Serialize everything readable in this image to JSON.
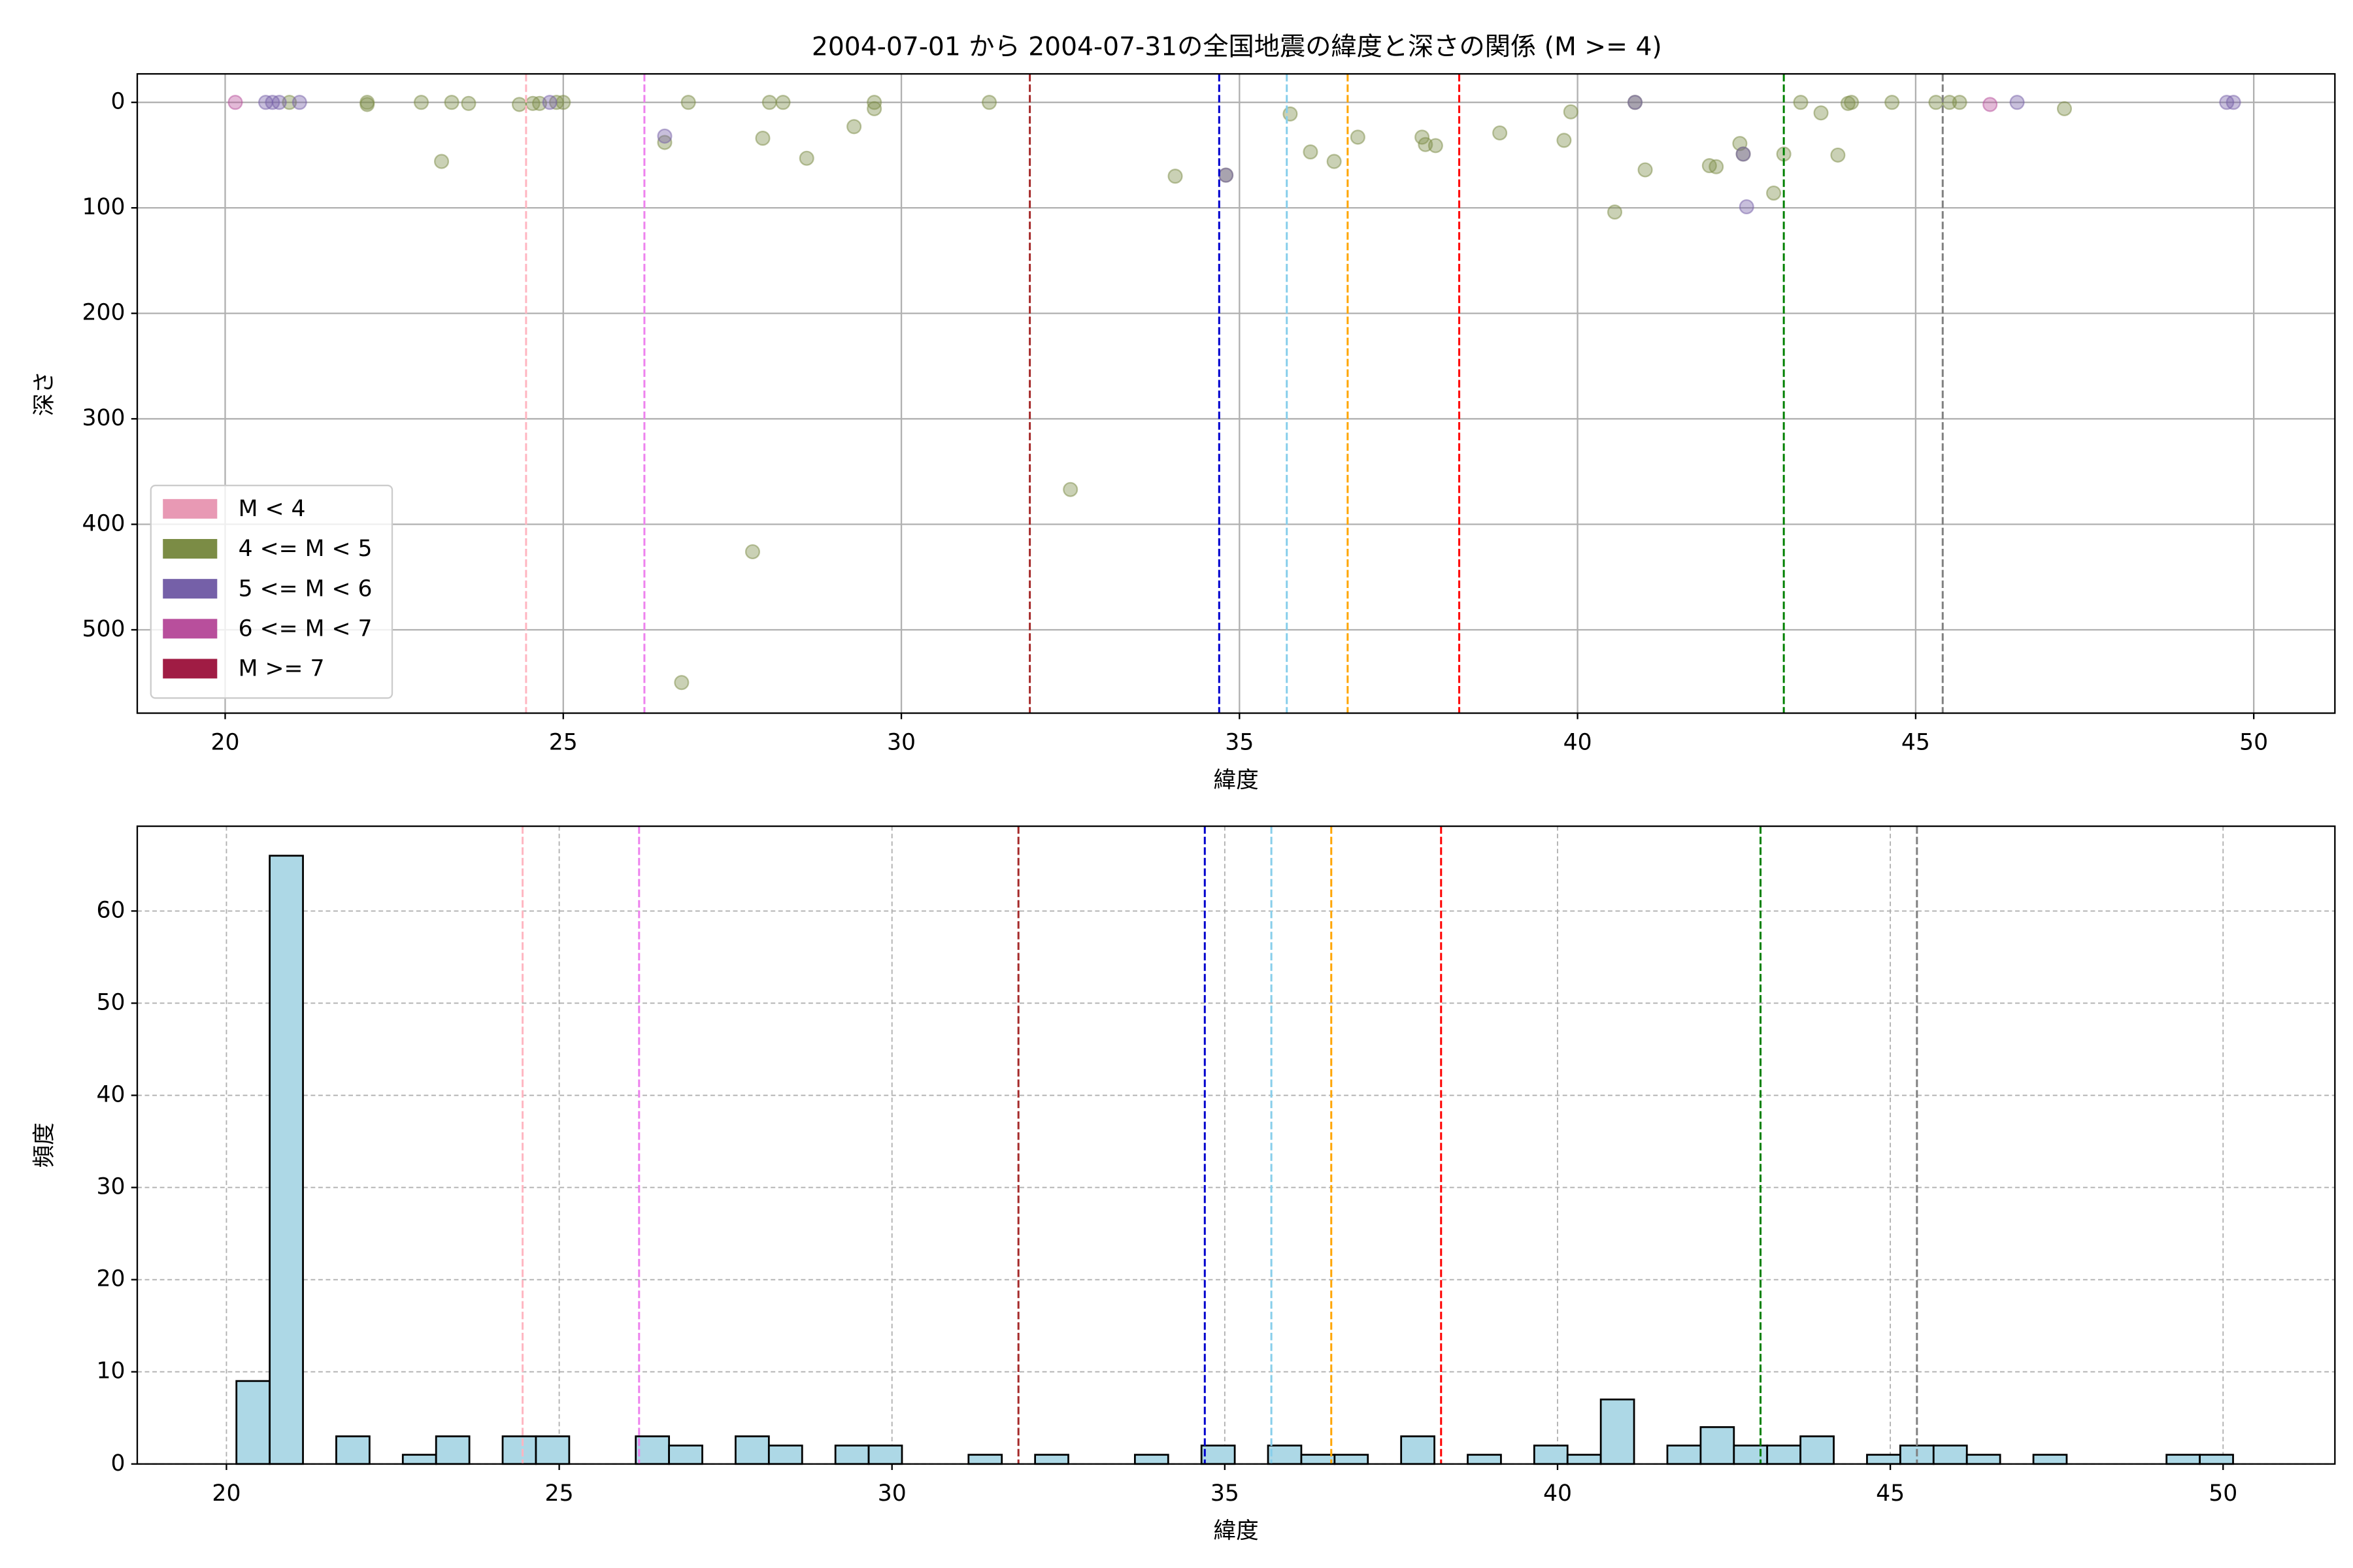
{
  "chart_data": [
    {
      "type": "scatter",
      "title": "2004-07-01 から 2004-07-31の全国地震の緯度と深さの関係 (M >= 4)",
      "x_label": "緯度",
      "y_label": "深さ",
      "xlim": [
        18.7,
        51.2
      ],
      "ylim": [
        579,
        -27
      ],
      "xticks": [
        20,
        25,
        30,
        35,
        40,
        45,
        50
      ],
      "yticks": [
        0,
        100,
        200,
        300,
        400,
        500
      ],
      "grid": true,
      "grid_style": "solid",
      "legend": "lower left",
      "series": [
        {
          "name": "M < 4",
          "color": "#e899b4",
          "x": [],
          "values": []
        },
        {
          "name": "4 <= M < 5",
          "color": "#7b8c45",
          "x": [
            20.95,
            22.1,
            22.1,
            22.9,
            23.35,
            23.6,
            23.2,
            24.35,
            24.55,
            24.65,
            24.9,
            25.0,
            26.5,
            26.85,
            27.95,
            28.05,
            28.25,
            28.6,
            29.3,
            29.6,
            29.6,
            31.3,
            32.5,
            34.05,
            35.75,
            36.05,
            36.4,
            36.75,
            37.7,
            37.75,
            37.9,
            38.85,
            39.8,
            39.9,
            40.85,
            40.55,
            41.0,
            41.95,
            42.05,
            42.4,
            42.45,
            42.9,
            43.05,
            43.3,
            43.6,
            43.85,
            44.0,
            44.05,
            44.65,
            45.3,
            45.5,
            45.65,
            47.2,
            27.8,
            26.75,
            34.8
          ],
          "values": [
            0,
            0,
            2,
            0,
            0,
            1,
            56,
            2,
            1,
            1,
            0,
            0,
            38,
            0,
            34,
            0,
            0,
            53,
            23,
            0,
            6,
            0,
            367,
            70,
            11,
            47,
            56,
            33,
            33,
            40,
            41,
            29,
            36,
            9,
            0,
            104,
            64,
            60,
            61,
            39,
            49,
            86,
            49,
            0,
            10,
            50,
            1,
            0,
            0,
            0,
            0,
            0,
            6,
            426,
            550,
            69
          ]
        },
        {
          "name": "5 <= M < 6",
          "color": "#7560a8",
          "x": [
            20.6,
            20.7,
            20.8,
            21.1,
            24.8,
            26.5,
            34.8,
            40.85,
            42.45,
            42.5,
            46.5,
            49.6,
            49.7
          ],
          "values": [
            0,
            0,
            0,
            0,
            0,
            32,
            69,
            0,
            49,
            99,
            0,
            0,
            0
          ]
        },
        {
          "name": "6 <= M < 7",
          "color": "#b84f9c",
          "x": [
            20.15,
            46.1
          ],
          "values": [
            0,
            2
          ]
        },
        {
          "name": "M >= 7",
          "color": "#a01c44",
          "x": [],
          "values": []
        }
      ],
      "vlines": [
        {
          "x": 24.45,
          "color": "#ffb6c1"
        },
        {
          "x": 26.2,
          "color": "#ee82ee"
        },
        {
          "x": 31.9,
          "color": "#a52a2a"
        },
        {
          "x": 34.7,
          "color": "#0000cd"
        },
        {
          "x": 35.7,
          "color": "#87ceeb"
        },
        {
          "x": 36.6,
          "color": "#ffa500"
        },
        {
          "x": 38.25,
          "color": "#ff0000"
        },
        {
          "x": 43.05,
          "color": "#008000"
        },
        {
          "x": 45.4,
          "color": "#808080"
        }
      ]
    },
    {
      "type": "histogram",
      "x_label": "緯度",
      "y_label": "頻度",
      "xlim": [
        18.66,
        51.68
      ],
      "ylim": [
        0,
        69.2
      ],
      "xticks": [
        20,
        25,
        30,
        35,
        40,
        45,
        50
      ],
      "yticks": [
        0,
        10,
        20,
        30,
        40,
        50,
        60
      ],
      "grid": true,
      "grid_style": "dashed",
      "color": "#add8e6",
      "bins": [
        20.15,
        20.65,
        21.15,
        21.65,
        22.15,
        22.65,
        23.15,
        23.65,
        24.15,
        24.65,
        25.15,
        25.65,
        26.15,
        26.65,
        27.15,
        27.65,
        28.15,
        28.65,
        29.15,
        29.65,
        30.15,
        30.65,
        31.15,
        31.65,
        32.15,
        32.65,
        33.15,
        33.65,
        34.15,
        34.65,
        35.15,
        35.65,
        36.15,
        36.65,
        37.15,
        37.65,
        38.15,
        38.65,
        39.15,
        39.65,
        40.15,
        40.65,
        41.15,
        41.65,
        42.15,
        42.65,
        43.15,
        43.65,
        44.15,
        44.65,
        45.15,
        45.65,
        46.15,
        46.65,
        47.15,
        47.65,
        48.15,
        48.65,
        49.15,
        49.65,
        50.15
      ],
      "values": [
        9,
        66,
        0,
        3,
        0,
        1,
        3,
        0,
        3,
        3,
        0,
        0,
        3,
        2,
        0,
        3,
        2,
        0,
        2,
        2,
        0,
        0,
        1,
        0,
        1,
        0,
        0,
        1,
        0,
        2,
        0,
        2,
        1,
        1,
        0,
        3,
        0,
        1,
        0,
        2,
        1,
        7,
        0,
        2,
        4,
        2,
        2,
        3,
        0,
        1,
        2,
        2,
        1,
        0,
        1,
        0,
        0,
        0,
        1,
        1
      ],
      "vlines": [
        {
          "x": 24.45,
          "color": "#ffb6c1"
        },
        {
          "x": 26.2,
          "color": "#ee82ee"
        },
        {
          "x": 31.9,
          "color": "#a52a2a"
        },
        {
          "x": 34.7,
          "color": "#0000cd"
        },
        {
          "x": 35.7,
          "color": "#87ceeb"
        },
        {
          "x": 36.6,
          "color": "#ffa500"
        },
        {
          "x": 38.25,
          "color": "#ff0000"
        },
        {
          "x": 43.05,
          "color": "#008000"
        },
        {
          "x": 45.4,
          "color": "#808080"
        }
      ]
    }
  ]
}
